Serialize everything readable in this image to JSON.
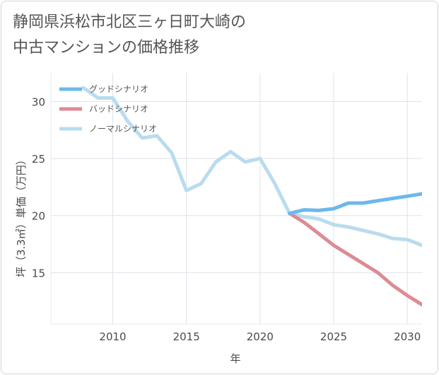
{
  "title_line1": "静岡県浜松市北区三ヶ日町大崎の",
  "title_line2": "中古マンションの価格推移",
  "chart_data": {
    "type": "line",
    "xlabel": "年",
    "ylabel": "坪（3.3㎡）単価（万円）",
    "xlim": [
      2005.8,
      2031
    ],
    "ylim": [
      10.5,
      32.5
    ],
    "x_ticks": [
      2010,
      2015,
      2020,
      2025,
      2030
    ],
    "y_ticks": [
      15,
      20,
      25,
      30
    ],
    "grid": true,
    "legend_position": "top-left",
    "series": [
      {
        "name": "グッドシナリオ",
        "color": "#6cb8ec",
        "x": [
          2022,
          2023,
          2024,
          2025,
          2026,
          2027,
          2028,
          2029,
          2030,
          2031
        ],
        "y": [
          20.2,
          20.5,
          20.45,
          20.6,
          21.1,
          21.1,
          21.3,
          21.5,
          21.7,
          21.9
        ]
      },
      {
        "name": "バッドシナリオ",
        "color": "#dc8c94",
        "x": [
          2022,
          2023,
          2024,
          2025,
          2026,
          2027,
          2028,
          2029,
          2030,
          2031
        ],
        "y": [
          20.2,
          19.4,
          18.4,
          17.4,
          16.6,
          15.8,
          15.0,
          13.9,
          13.0,
          12.2
        ]
      },
      {
        "name": "ノーマルシナリオ",
        "color": "#b9dcee",
        "x": [
          2008,
          2009,
          2010,
          2011,
          2012,
          2013,
          2014,
          2015,
          2016,
          2017,
          2018,
          2019,
          2020,
          2021,
          2022,
          2023,
          2024,
          2025,
          2026,
          2027,
          2028,
          2029,
          2030,
          2031
        ],
        "y": [
          31.2,
          30.3,
          30.3,
          28.3,
          26.8,
          27.0,
          25.5,
          22.2,
          22.8,
          24.7,
          25.6,
          24.7,
          25.0,
          22.8,
          20.2,
          19.9,
          19.7,
          19.2,
          19.0,
          18.7,
          18.4,
          18.0,
          17.9,
          17.4
        ]
      }
    ]
  }
}
